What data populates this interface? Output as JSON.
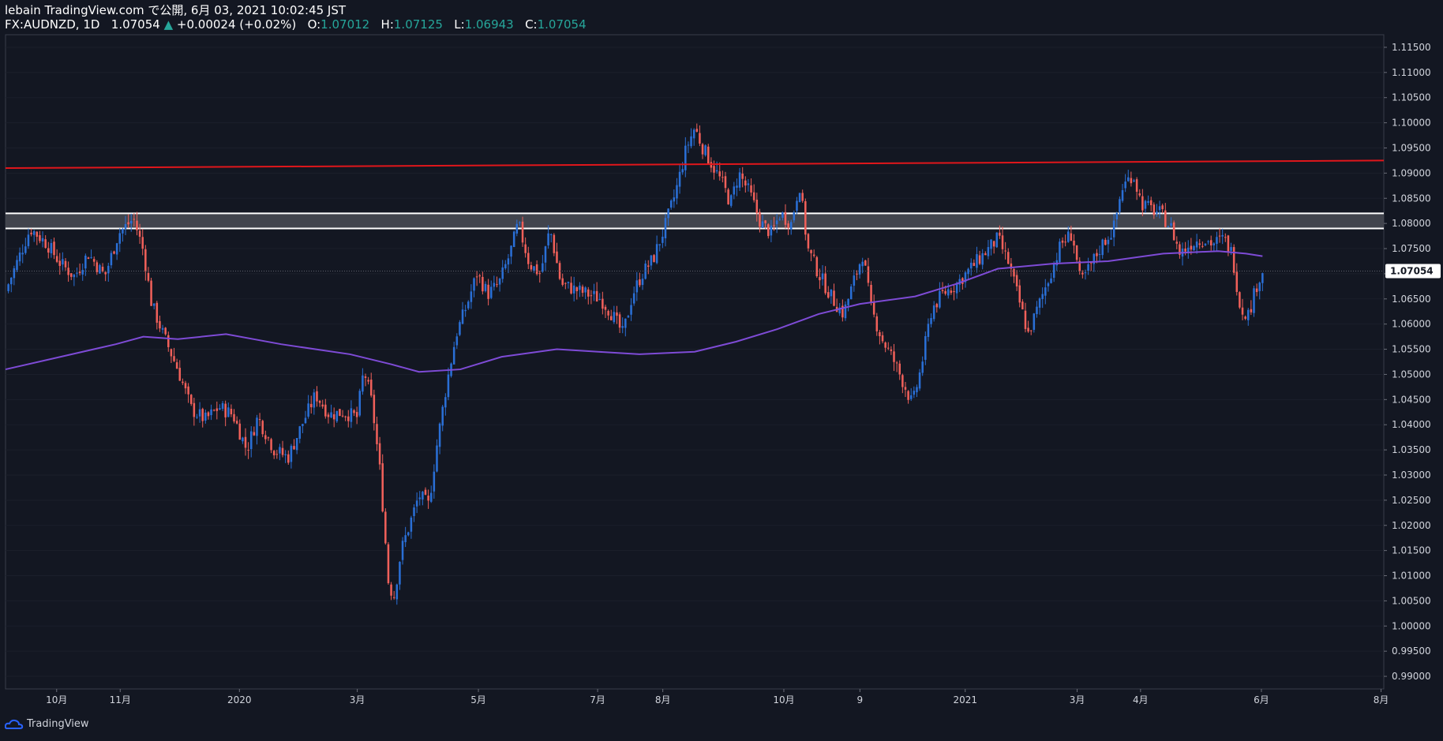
{
  "header": {
    "line1": "lebain TradingView.com で公開, 6月 03, 2021 10:02:45 JST",
    "symbol": "FX:AUDNZD, 1D",
    "last": "1.07054",
    "change": "+0.00024 (+0.02%)",
    "o_label": "O:",
    "o_value": "1.07012",
    "h_label": "H:",
    "h_value": "1.07125",
    "l_label": "L:",
    "l_value": "1.06943",
    "c_label": "C:",
    "c_value": "1.07054"
  },
  "footer": {
    "brand": "TradingView"
  },
  "colors": {
    "background": "#131722",
    "up": "#2a6fd6",
    "down": "#f0605a",
    "ma": "#7e4bd6",
    "trendline": "#e0161b",
    "zone": "#4a4c55",
    "zone_border": "#ffffff",
    "grid": "#1b1f2b",
    "price_tag_bg": "#ffffff",
    "price_tag_text": "#131722"
  },
  "chart_data": {
    "type": "candlestick",
    "symbol": "FX:AUDNZD",
    "timeframe": "1D",
    "ylim": [
      0.9875,
      1.1175
    ],
    "y_ticks": [
      "1.11500",
      "1.11000",
      "1.10500",
      "1.10000",
      "1.09500",
      "1.09000",
      "1.08500",
      "1.08000",
      "1.07500",
      "1.07000",
      "1.06500",
      "1.06000",
      "1.05500",
      "1.05000",
      "1.04500",
      "1.04000",
      "1.03500",
      "1.03000",
      "1.02500",
      "1.02000",
      "1.01500",
      "1.01000",
      "1.00500",
      "1.00000",
      "0.99500",
      "0.99000"
    ],
    "x_ticks": [
      {
        "label": "10月",
        "t": 0.0371
      },
      {
        "label": "11月",
        "t": 0.0832
      },
      {
        "label": "2020",
        "t": 0.1697
      },
      {
        "label": "3月",
        "t": 0.2552
      },
      {
        "label": "5月",
        "t": 0.3431
      },
      {
        "label": "7月",
        "t": 0.4296
      },
      {
        "label": "8月",
        "t": 0.4769
      },
      {
        "label": "10月",
        "t": 0.5647
      },
      {
        "label": "9",
        "t": 0.6199
      },
      {
        "label": "2021",
        "t": 0.6963
      },
      {
        "label": "3月",
        "t": 0.7775
      },
      {
        "label": "4月",
        "t": 0.8235
      },
      {
        "label": "6月",
        "t": 0.9112
      },
      {
        "label": "8月",
        "t": 0.998
      }
    ],
    "current_price": "1.07054",
    "series_close": [
      [
        0.0,
        1.0665
      ],
      [
        0.018,
        1.079
      ],
      [
        0.03,
        1.076
      ],
      [
        0.04,
        1.072
      ],
      [
        0.05,
        1.0695
      ],
      [
        0.06,
        1.074
      ],
      [
        0.072,
        1.0695
      ],
      [
        0.082,
        1.078
      ],
      [
        0.093,
        1.081
      ],
      [
        0.1,
        1.0745
      ],
      [
        0.106,
        1.064
      ],
      [
        0.115,
        1.0575
      ],
      [
        0.125,
        1.051
      ],
      [
        0.135,
        1.043
      ],
      [
        0.145,
        1.041
      ],
      [
        0.155,
        1.0435
      ],
      [
        0.165,
        1.042
      ],
      [
        0.175,
        1.035
      ],
      [
        0.183,
        1.0415
      ],
      [
        0.195,
        1.035
      ],
      [
        0.205,
        1.0335
      ],
      [
        0.215,
        1.04
      ],
      [
        0.225,
        1.046
      ],
      [
        0.235,
        1.042
      ],
      [
        0.245,
        1.0425
      ],
      [
        0.255,
        1.0415
      ],
      [
        0.26,
        1.051
      ],
      [
        0.266,
        1.044
      ],
      [
        0.272,
        1.03
      ],
      [
        0.278,
        1.008
      ],
      [
        0.282,
        1.006
      ],
      [
        0.287,
        1.015
      ],
      [
        0.293,
        1.02
      ],
      [
        0.3,
        1.026
      ],
      [
        0.307,
        1.024
      ],
      [
        0.313,
        1.036
      ],
      [
        0.32,
        1.048
      ],
      [
        0.327,
        1.058
      ],
      [
        0.335,
        1.064
      ],
      [
        0.342,
        1.07
      ],
      [
        0.35,
        1.066
      ],
      [
        0.358,
        1.068
      ],
      [
        0.366,
        1.074
      ],
      [
        0.372,
        1.08
      ],
      [
        0.38,
        1.072
      ],
      [
        0.388,
        1.07
      ],
      [
        0.395,
        1.079
      ],
      [
        0.403,
        1.068
      ],
      [
        0.412,
        1.067
      ],
      [
        0.422,
        1.066
      ],
      [
        0.432,
        1.065
      ],
      [
        0.44,
        1.062
      ],
      [
        0.448,
        1.058
      ],
      [
        0.455,
        1.066
      ],
      [
        0.462,
        1.07
      ],
      [
        0.47,
        1.073
      ],
      [
        0.478,
        1.079
      ],
      [
        0.486,
        1.086
      ],
      [
        0.494,
        1.095
      ],
      [
        0.5,
        1.099
      ],
      [
        0.506,
        1.095
      ],
      [
        0.512,
        1.092
      ],
      [
        0.52,
        1.088
      ],
      [
        0.526,
        1.084
      ],
      [
        0.532,
        1.09
      ],
      [
        0.54,
        1.086
      ],
      [
        0.548,
        1.08
      ],
      [
        0.556,
        1.078
      ],
      [
        0.562,
        1.082
      ],
      [
        0.57,
        1.08
      ],
      [
        0.576,
        1.088
      ],
      [
        0.582,
        1.075
      ],
      [
        0.59,
        1.07
      ],
      [
        0.6,
        1.065
      ],
      [
        0.608,
        1.062
      ],
      [
        0.616,
        1.069
      ],
      [
        0.622,
        1.074
      ],
      [
        0.628,
        1.063
      ],
      [
        0.636,
        1.057
      ],
      [
        0.644,
        1.053
      ],
      [
        0.652,
        1.048
      ],
      [
        0.658,
        1.044
      ],
      [
        0.664,
        1.051
      ],
      [
        0.672,
        1.063
      ],
      [
        0.68,
        1.066
      ],
      [
        0.69,
        1.068
      ],
      [
        0.7,
        1.071
      ],
      [
        0.71,
        1.074
      ],
      [
        0.72,
        1.077
      ],
      [
        0.728,
        1.072
      ],
      [
        0.736,
        1.064
      ],
      [
        0.742,
        1.058
      ],
      [
        0.75,
        1.064
      ],
      [
        0.758,
        1.07
      ],
      [
        0.766,
        1.076
      ],
      [
        0.774,
        1.078
      ],
      [
        0.78,
        1.068
      ],
      [
        0.788,
        1.072
      ],
      [
        0.796,
        1.076
      ],
      [
        0.804,
        1.079
      ],
      [
        0.81,
        1.087
      ],
      [
        0.818,
        1.09
      ],
      [
        0.824,
        1.084
      ],
      [
        0.83,
        1.083
      ],
      [
        0.838,
        1.082
      ],
      [
        0.846,
        1.079
      ],
      [
        0.852,
        1.074
      ],
      [
        0.86,
        1.076
      ],
      [
        0.868,
        1.077
      ],
      [
        0.876,
        1.076
      ],
      [
        0.884,
        1.077
      ],
      [
        0.89,
        1.074
      ],
      [
        0.896,
        1.063
      ],
      [
        0.902,
        1.062
      ],
      [
        0.908,
        1.068
      ],
      [
        0.912,
        1.07054
      ]
    ],
    "moving_average": [
      [
        0.0,
        1.051
      ],
      [
        0.04,
        1.0535
      ],
      [
        0.08,
        1.056
      ],
      [
        0.1,
        1.0575
      ],
      [
        0.125,
        1.057
      ],
      [
        0.16,
        1.058
      ],
      [
        0.2,
        1.056
      ],
      [
        0.25,
        1.054
      ],
      [
        0.28,
        1.052
      ],
      [
        0.3,
        1.0505
      ],
      [
        0.33,
        1.051
      ],
      [
        0.36,
        1.0535
      ],
      [
        0.4,
        1.055
      ],
      [
        0.43,
        1.0545
      ],
      [
        0.46,
        1.054
      ],
      [
        0.5,
        1.0545
      ],
      [
        0.53,
        1.0565
      ],
      [
        0.56,
        1.059
      ],
      [
        0.59,
        1.062
      ],
      [
        0.62,
        1.064
      ],
      [
        0.66,
        1.0655
      ],
      [
        0.69,
        1.068
      ],
      [
        0.72,
        1.071
      ],
      [
        0.76,
        1.072
      ],
      [
        0.8,
        1.0725
      ],
      [
        0.84,
        1.074
      ],
      [
        0.88,
        1.0745
      ],
      [
        0.9,
        1.074
      ],
      [
        0.912,
        1.0735
      ]
    ],
    "trendline": {
      "start": [
        0.0,
        1.091
      ],
      "end": [
        1.0,
        1.0925
      ]
    },
    "resistance_zone": {
      "low": 1.079,
      "high": 1.082
    }
  }
}
